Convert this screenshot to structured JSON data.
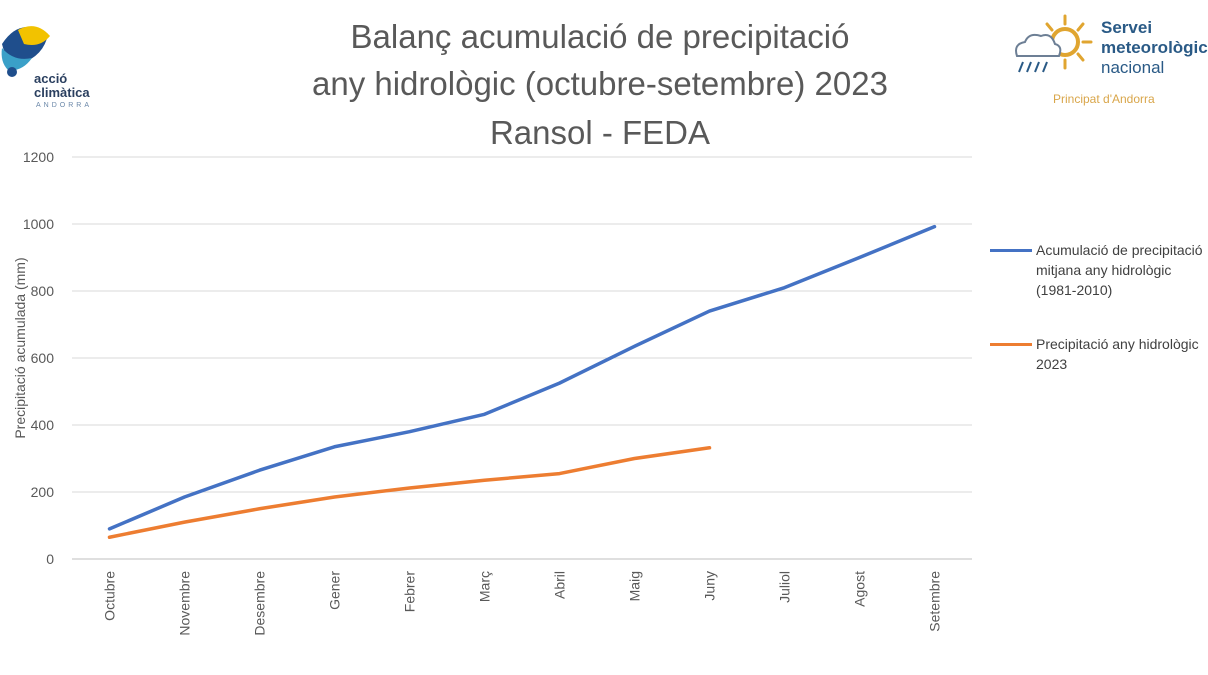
{
  "logos": {
    "left": {
      "line1": "acció",
      "line2": "climàtica",
      "line3": "ANDORRA"
    },
    "right": {
      "line1": "Servei",
      "line2": "meteorològic",
      "line3": "nacional",
      "line4": "Principat d'Andorra"
    }
  },
  "chart_data": {
    "type": "line",
    "title": [
      "Balanç acumulació de precipitació",
      "any hidrològic (octubre-setembre) 2023",
      "Ransol - FEDA"
    ],
    "ylabel": "Precipitació acumulada (mm)",
    "xlabel": "",
    "ylim": [
      0,
      1200
    ],
    "yticks": [
      "0",
      "200",
      "400",
      "600",
      "800",
      "1000",
      "1200"
    ],
    "grid": true,
    "legend_position": "right",
    "categories": [
      "Octubre",
      "Novembre",
      "Desembre",
      "Gener",
      "Febrer",
      "Març",
      "Abril",
      "Maig",
      "Juny",
      "Juliol",
      "Agost",
      "Setembre"
    ],
    "series": [
      {
        "name": "Acumulació de precipitació mitjana any hidrològic (1981-2010)",
        "color": "#4472c4",
        "values": [
          90,
          185,
          265,
          335,
          380,
          432,
          525,
          635,
          740,
          810,
          900,
          992
        ]
      },
      {
        "name": "Precipitació any hidrològic 2023",
        "color": "#ed7d31",
        "values": [
          65,
          110,
          150,
          185,
          212,
          235,
          255,
          300,
          332,
          null,
          null,
          null
        ]
      }
    ]
  }
}
